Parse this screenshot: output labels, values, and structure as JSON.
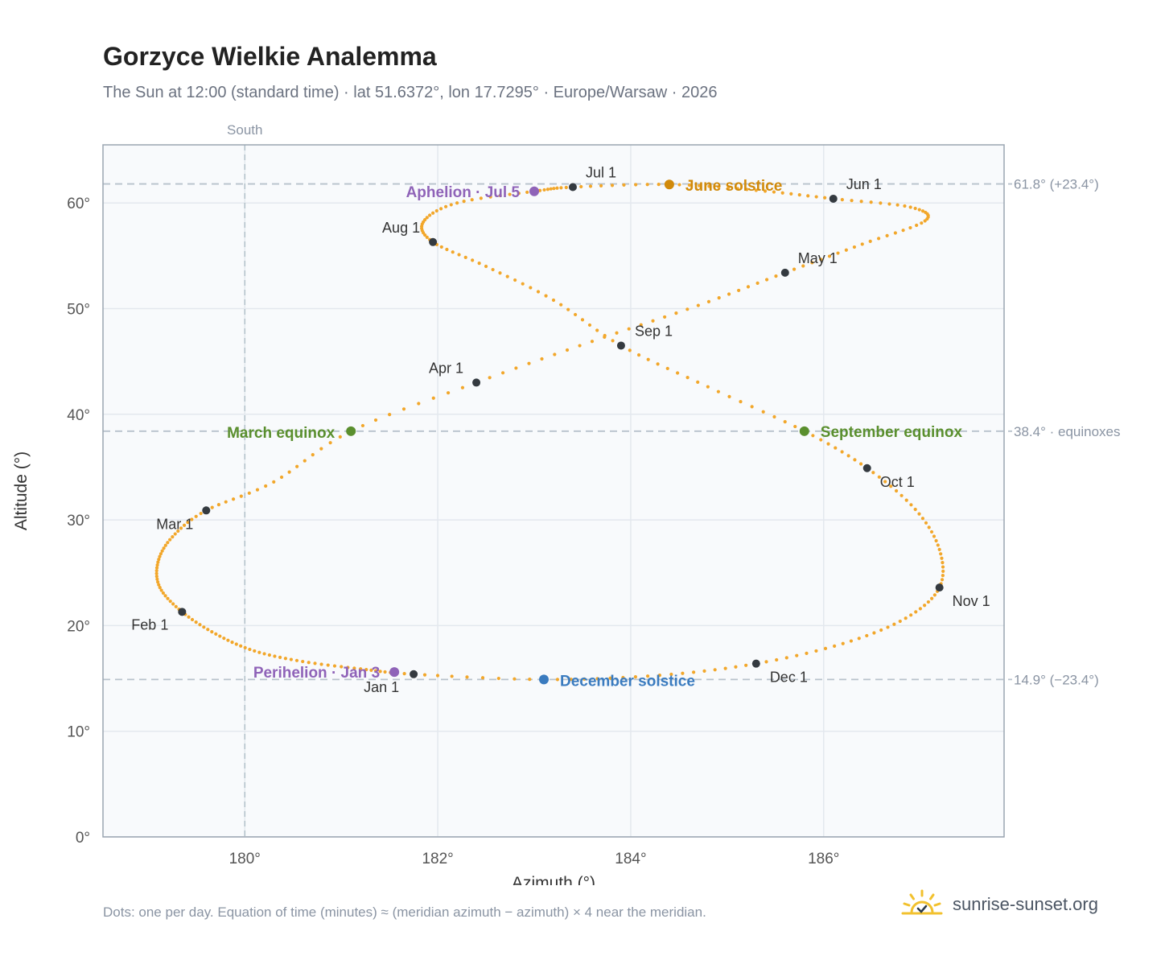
{
  "title": "Gorzyce Wielkie Analemma",
  "subtitle": "The Sun at 12:00 (standard time) · lat 51.6372°, lon 17.7295° · Europe/Warsaw · 2026",
  "footnote": "Dots: one per day. Equation of time (minutes) ≈ (meridian azimuth − azimuth) × 4 near the meridian.",
  "brand": "sunrise-sunset.org",
  "colors": {
    "curve": "#f2a72b",
    "month_marker": "#343a40",
    "solstice_june": "#d18a0a",
    "solstice_december": "#3a7bbf",
    "equinox": "#5a8f2e",
    "aphelion_perihelion": "#8f63b8",
    "plot_bg": "#f8fafc",
    "grid": "#e3e8ee",
    "axis": "#9aa5b1",
    "brand_sun": "#f2c12e"
  },
  "chart_data": {
    "type": "scatter",
    "xlabel": "Azimuth (°)",
    "ylabel": "Altitude (°)",
    "xlim": [
      178.53,
      187.87
    ],
    "ylim": [
      0,
      65.5
    ],
    "xticks": [
      180,
      182,
      184,
      186
    ],
    "xtick_labels": [
      "180°",
      "182°",
      "184°",
      "186°"
    ],
    "yticks": [
      0,
      10,
      20,
      30,
      40,
      50,
      60
    ],
    "ytick_labels": [
      "0°",
      "10°",
      "20°",
      "30°",
      "40°",
      "50°",
      "60°"
    ],
    "grid": true,
    "meridian": {
      "x": 180,
      "label": "South"
    },
    "reference_lines": [
      {
        "y": 61.8,
        "label": "61.8° (+23.4°)"
      },
      {
        "y": 38.4,
        "label": "38.4° · equinoxes"
      },
      {
        "y": 14.9,
        "label": "14.9° (−23.4°)"
      }
    ],
    "series": [
      {
        "dots_per_day": 1,
        "points": [
          [
            181.75,
            15.4
          ],
          [
            181.2,
            15.9
          ],
          [
            180.6,
            16.6
          ],
          [
            180.1,
            17.6
          ],
          [
            179.7,
            19.2
          ],
          [
            179.35,
            21.3
          ],
          [
            179.12,
            23.6
          ],
          [
            179.1,
            26.0
          ],
          [
            179.25,
            28.4
          ],
          [
            179.6,
            30.9
          ],
          [
            180.3,
            33.6
          ],
          [
            181.1,
            38.4
          ],
          [
            182.4,
            43.0
          ],
          [
            183.6,
            46.9
          ],
          [
            184.7,
            50.3
          ],
          [
            185.6,
            53.4
          ],
          [
            186.4,
            56.1
          ],
          [
            187.05,
            58.3
          ],
          [
            186.9,
            59.6
          ],
          [
            186.1,
            60.4
          ],
          [
            185.3,
            61.2
          ],
          [
            184.4,
            61.75
          ],
          [
            183.4,
            61.5
          ],
          [
            183.0,
            61.1
          ],
          [
            182.2,
            60.0
          ],
          [
            181.85,
            58.2
          ],
          [
            181.95,
            56.3
          ],
          [
            182.5,
            54.0
          ],
          [
            183.2,
            50.8
          ],
          [
            183.9,
            46.5
          ],
          [
            184.8,
            42.6
          ],
          [
            185.8,
            38.4
          ],
          [
            186.45,
            34.9
          ],
          [
            186.95,
            31.0
          ],
          [
            187.2,
            27.2
          ],
          [
            187.2,
            23.6
          ],
          [
            186.85,
            20.7
          ],
          [
            186.2,
            18.3
          ],
          [
            185.3,
            16.4
          ],
          [
            184.3,
            15.3
          ],
          [
            183.1,
            14.9
          ],
          [
            181.75,
            15.4
          ]
        ]
      }
    ],
    "month_markers": [
      {
        "label": "Jan 1",
        "x": 181.75,
        "y": 15.4
      },
      {
        "label": "Feb 1",
        "x": 179.35,
        "y": 21.3
      },
      {
        "label": "Mar 1",
        "x": 179.6,
        "y": 30.9
      },
      {
        "label": "Apr 1",
        "x": 182.4,
        "y": 43.0
      },
      {
        "label": "May 1",
        "x": 185.6,
        "y": 53.4
      },
      {
        "label": "Jun 1",
        "x": 186.1,
        "y": 60.4
      },
      {
        "label": "Jul 1",
        "x": 183.4,
        "y": 61.5
      },
      {
        "label": "Aug 1",
        "x": 181.95,
        "y": 56.3
      },
      {
        "label": "Sep 1",
        "x": 183.9,
        "y": 46.5
      },
      {
        "label": "Oct 1",
        "x": 186.45,
        "y": 34.9
      },
      {
        "label": "Nov 1",
        "x": 187.2,
        "y": 23.6
      },
      {
        "label": "Dec 1",
        "x": 185.3,
        "y": 16.4
      }
    ],
    "events": [
      {
        "label": "June solstice",
        "x": 184.4,
        "y": 61.75,
        "kind": "solstice_june"
      },
      {
        "label": "December solstice",
        "x": 183.1,
        "y": 14.9,
        "kind": "solstice_december"
      },
      {
        "label": "March equinox",
        "x": 181.1,
        "y": 38.4,
        "kind": "equinox"
      },
      {
        "label": "September equinox",
        "x": 185.8,
        "y": 38.4,
        "kind": "equinox"
      },
      {
        "label": "Aphelion · Jul 5",
        "x": 183.0,
        "y": 61.1,
        "kind": "aphelion_perihelion"
      },
      {
        "label": "Perihelion · Jan 3",
        "x": 181.55,
        "y": 15.6,
        "kind": "aphelion_perihelion"
      }
    ]
  }
}
